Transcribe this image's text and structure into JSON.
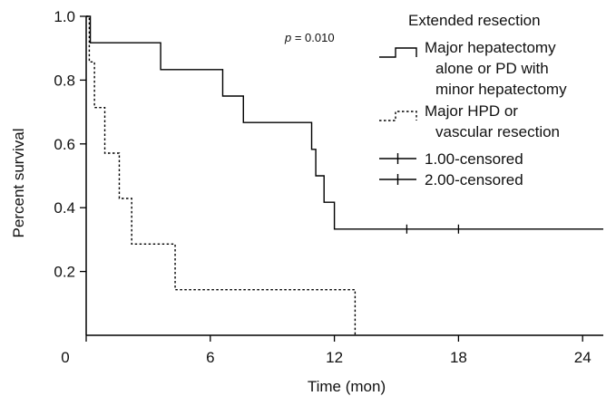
{
  "chart_data": {
    "type": "line",
    "subtype": "kaplan-meier step",
    "title": "",
    "xlabel": "Time (mon)",
    "ylabel": "Percent survival",
    "xlim": [
      0,
      25
    ],
    "ylim": [
      0,
      1.0
    ],
    "xticks": [
      0,
      6,
      12,
      18,
      24
    ],
    "xtick_labels": [
      "0",
      "6",
      "12",
      "18",
      "24"
    ],
    "yticks": [
      0.2,
      0.4,
      0.6,
      0.8,
      1.0
    ],
    "ytick_labels": [
      "0.2",
      "0.4",
      "0.6",
      "0.8",
      "1.0"
    ],
    "grid": false,
    "annotation": {
      "italic": "p",
      "text": " = 0.010"
    },
    "legend": {
      "title": "Extended resection",
      "placement": "top-right",
      "entries": [
        {
          "lines": [
            "Major hepatectomy",
            "alone or PD with",
            "minor hepatectomy"
          ],
          "style": "solid-step"
        },
        {
          "lines": [
            "Major HPD or",
            "vascular resection"
          ],
          "style": "dotted-step"
        },
        {
          "lines": [
            "1.00-censored"
          ],
          "style": "censor-mark"
        },
        {
          "lines": [
            "2.00-censored"
          ],
          "style": "censor-mark"
        }
      ]
    },
    "series": [
      {
        "name": "Major hepatectomy alone or PD with minor hepatectomy",
        "style": "solid",
        "color": "#000000",
        "steps": [
          [
            0,
            1.0
          ],
          [
            0.2,
            0.917
          ],
          [
            3.6,
            0.833
          ],
          [
            6.6,
            0.75
          ],
          [
            7.6,
            0.667
          ],
          [
            10.9,
            0.583
          ],
          [
            11.1,
            0.5
          ],
          [
            11.5,
            0.417
          ],
          [
            12.0,
            0.333
          ],
          [
            25,
            0.333
          ]
        ],
        "censored": [
          [
            15.5,
            0.333
          ],
          [
            18.0,
            0.333
          ]
        ]
      },
      {
        "name": "Major HPD or vascular resection",
        "style": "dotted",
        "color": "#000000",
        "steps": [
          [
            0,
            1.0
          ],
          [
            0.15,
            0.857
          ],
          [
            0.4,
            0.714
          ],
          [
            0.9,
            0.571
          ],
          [
            1.6,
            0.429
          ],
          [
            2.2,
            0.286
          ],
          [
            4.3,
            0.143
          ],
          [
            13.0,
            0.0
          ]
        ],
        "censored": []
      }
    ]
  }
}
